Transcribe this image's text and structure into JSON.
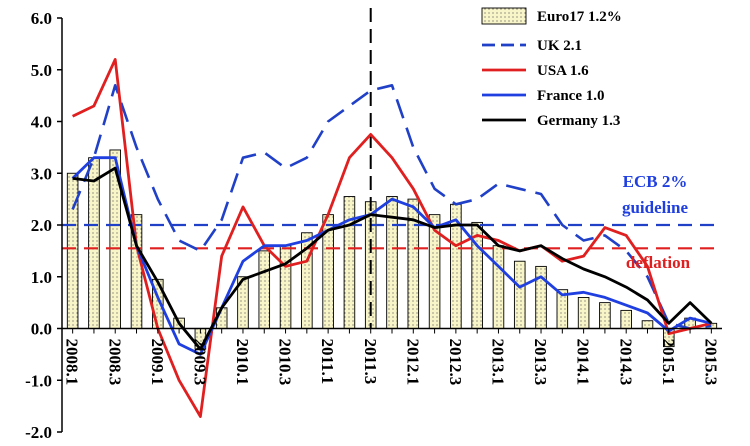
{
  "chart_data": {
    "type": "bar+line",
    "title": "",
    "xlabel": "",
    "ylabel": "",
    "ylim": [
      -2.0,
      6.0
    ],
    "yticks": [
      "-2.0",
      "-1.0",
      "0.0",
      "1.0",
      "2.0",
      "3.0",
      "4.0",
      "5.0",
      "6.0"
    ],
    "xticks": [
      "2008.1",
      "2008.3",
      "2009.1",
      "2009.3",
      "2010.1",
      "2010.3",
      "2011.1",
      "2011.3",
      "2012.1",
      "2012.3",
      "2013.1",
      "2013.3",
      "2014.1",
      "2014.3",
      "2015.1",
      "2015.3"
    ],
    "categories": [
      "2008.1",
      "2008.2",
      "2008.3",
      "2008.4",
      "2009.1",
      "2009.2",
      "2009.3",
      "2009.4",
      "2010.1",
      "2010.2",
      "2010.3",
      "2010.4",
      "2011.1",
      "2011.2",
      "2011.3",
      "2011.4",
      "2012.1",
      "2012.2",
      "2012.3",
      "2012.4",
      "2013.1",
      "2013.2",
      "2013.3",
      "2013.4",
      "2014.1",
      "2014.2",
      "2014.3",
      "2014.4",
      "2015.1",
      "2015.2",
      "2015.3"
    ],
    "bar_series": {
      "name": "Euro17 1.2%",
      "color": "#f8f5c8",
      "values": [
        3.0,
        3.3,
        3.45,
        2.2,
        0.95,
        0.2,
        -0.4,
        0.4,
        1.0,
        1.5,
        1.6,
        1.85,
        2.2,
        2.55,
        2.45,
        2.55,
        2.5,
        2.2,
        2.4,
        2.05,
        1.6,
        1.3,
        1.2,
        0.75,
        0.6,
        0.5,
        0.35,
        0.15,
        -0.35,
        0.2,
        0.1
      ]
    },
    "series": [
      {
        "name": "UK 2.1",
        "color": "#2040c8",
        "dash": "dashed",
        "values": [
          2.3,
          3.3,
          4.7,
          3.5,
          2.5,
          1.7,
          1.5,
          2.1,
          3.3,
          3.4,
          3.1,
          3.3,
          4.0,
          4.3,
          4.6,
          4.7,
          3.5,
          2.7,
          2.4,
          2.5,
          2.8,
          2.7,
          2.6,
          2.0,
          1.7,
          1.8,
          1.5,
          1.0,
          0.1,
          0.0,
          0.05
        ]
      },
      {
        "name": "USA 1.6",
        "color": "#e02020",
        "dash": "solid",
        "values": [
          4.1,
          4.3,
          5.2,
          1.6,
          0.0,
          -1.0,
          -1.7,
          1.4,
          2.35,
          1.6,
          1.2,
          1.3,
          2.2,
          3.3,
          3.75,
          3.3,
          2.7,
          1.9,
          1.6,
          1.8,
          1.7,
          1.5,
          1.6,
          1.3,
          1.4,
          1.95,
          1.8,
          1.2,
          -0.1,
          0.0,
          0.1
        ]
      },
      {
        "name": "France 1.0",
        "color": "#1f3fe0",
        "dash": "solid",
        "values": [
          2.9,
          3.3,
          3.3,
          1.6,
          0.6,
          -0.3,
          -0.5,
          0.4,
          1.3,
          1.6,
          1.6,
          1.7,
          1.9,
          2.1,
          2.2,
          2.5,
          2.35,
          1.95,
          2.1,
          1.6,
          1.2,
          0.8,
          1.0,
          0.65,
          0.7,
          0.6,
          0.45,
          0.3,
          -0.05,
          0.2,
          0.1
        ]
      },
      {
        "name": "Germany 1.3",
        "color": "#000000",
        "dash": "solid",
        "values": [
          2.9,
          2.85,
          3.1,
          1.6,
          0.9,
          0.1,
          -0.4,
          0.4,
          0.95,
          1.1,
          1.25,
          1.55,
          1.9,
          2.0,
          2.2,
          2.15,
          2.1,
          1.95,
          2.0,
          2.0,
          1.6,
          1.5,
          1.6,
          1.35,
          1.15,
          1.0,
          0.8,
          0.55,
          0.1,
          0.5,
          0.1
        ]
      }
    ],
    "reference_lines": [
      {
        "name": "ECB 2% guideline",
        "value": 2.0,
        "color": "#2040c8",
        "dash": "dashed"
      },
      {
        "name": "deflation",
        "value": 1.55,
        "color": "#e02020",
        "dash": "dashed"
      }
    ],
    "marker_line": {
      "category": "2011.3",
      "style": "dashed"
    },
    "annotations": [
      {
        "text": "ECB 2%",
        "color": "#1f3fe0"
      },
      {
        "text": "guideline",
        "color": "#1f3fe0"
      },
      {
        "text": "deflation",
        "color": "#e02020"
      }
    ],
    "legend": {
      "position": "top-right"
    },
    "grid": false
  }
}
